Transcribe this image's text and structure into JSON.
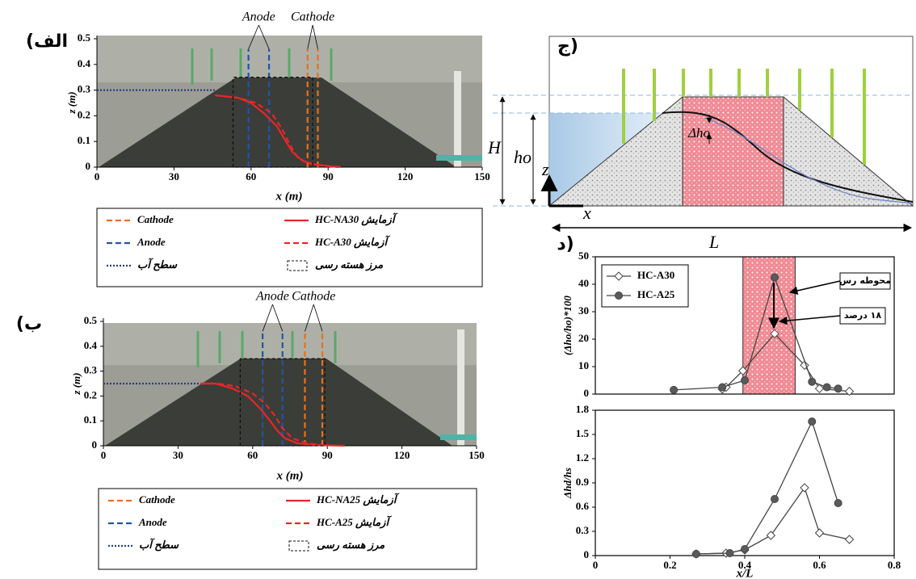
{
  "chart_data": [
    {
      "type": "line",
      "panel_label": "(الف",
      "annotations": [
        "Anode",
        "Cathode"
      ],
      "x_label": "x (m)",
      "y_label": "z (m)",
      "xlim": [
        0,
        150
      ],
      "xticks": [
        0,
        30,
        60,
        90,
        120,
        150
      ],
      "ylim": [
        0,
        0.5
      ],
      "yticks": [
        0,
        0.1,
        0.2,
        0.3,
        0.4,
        0.5
      ],
      "series": [
        {
          "name": "Cathode",
          "color": "#e8701e",
          "style": "dashed",
          "x": [
            82,
            82,
            null,
            86,
            86
          ],
          "values": [
            0,
            0.46,
            null,
            0,
            0.46
          ]
        },
        {
          "name": "Anode",
          "color": "#1f55a8",
          "style": "dashed",
          "x": [
            59,
            59,
            null,
            67,
            67
          ],
          "values": [
            0,
            0.46,
            null,
            0,
            0.46
          ]
        },
        {
          "name": "سطح آب",
          "color": "#2a3a8a",
          "style": "dotted",
          "x": [
            0,
            46
          ],
          "values": [
            0.3,
            0.3
          ]
        },
        {
          "name": "HC-NA30 آزمایش",
          "color": "#e8262a",
          "style": "solid",
          "x": [
            46,
            55,
            60,
            65,
            70,
            73,
            76,
            80,
            85,
            94
          ],
          "values": [
            0.28,
            0.27,
            0.25,
            0.21,
            0.16,
            0.11,
            0.06,
            0.025,
            0.01,
            0
          ]
        },
        {
          "name": "HC-A30 آزمایش",
          "color": "#e8262a",
          "style": "dashed",
          "x": [
            46,
            55,
            62,
            68,
            72,
            75,
            78,
            82,
            88,
            96
          ],
          "values": [
            0.28,
            0.27,
            0.25,
            0.21,
            0.15,
            0.09,
            0.04,
            0.015,
            0.005,
            0
          ]
        },
        {
          "name": "مرز هسته رسی",
          "color": "#111111",
          "style": "box",
          "x": [
            53,
            53,
            84,
            84,
            53
          ],
          "values": [
            0,
            0.35,
            0.35,
            0,
            0
          ]
        }
      ]
    },
    {
      "type": "line",
      "panel_label": "(ب",
      "annotations": [
        "Anode",
        "Cathode"
      ],
      "x_label": "x (m)",
      "y_label": "z (m)",
      "xlim": [
        0,
        150
      ],
      "xticks": [
        0,
        30,
        60,
        90,
        120,
        150
      ],
      "ylim": [
        0,
        0.5
      ],
      "yticks": [
        0,
        0.1,
        0.2,
        0.3,
        0.4,
        0.5
      ],
      "series": [
        {
          "name": "Cathode",
          "color": "#e8701e",
          "style": "dashed",
          "x": [
            81,
            81,
            null,
            88,
            88
          ],
          "values": [
            0,
            0.46,
            null,
            0,
            0.46
          ]
        },
        {
          "name": "Anode",
          "color": "#1f55a8",
          "style": "dashed",
          "x": [
            64,
            64,
            null,
            72,
            72
          ],
          "values": [
            0,
            0.46,
            null,
            0,
            0.46
          ]
        },
        {
          "name": "سطح آب",
          "color": "#2a3a8a",
          "style": "dotted",
          "x": [
            0,
            39
          ],
          "values": [
            0.25,
            0.25
          ]
        },
        {
          "name": "HC-NA25 آزمایش",
          "color": "#e8262a",
          "style": "solid",
          "x": [
            39,
            45,
            52,
            58,
            63,
            67,
            70,
            73,
            78,
            85,
            97
          ],
          "values": [
            0.25,
            0.25,
            0.23,
            0.2,
            0.15,
            0.1,
            0.06,
            0.03,
            0.01,
            0.003,
            0
          ]
        },
        {
          "name": "HC-A25 آزمایش",
          "color": "#e8262a",
          "style": "dashed",
          "x": [
            39,
            46,
            53,
            60,
            65,
            69,
            72,
            76,
            82,
            90
          ],
          "values": [
            0.25,
            0.25,
            0.24,
            0.21,
            0.17,
            0.12,
            0.07,
            0.03,
            0.01,
            0
          ]
        },
        {
          "name": "مرز هسته رسی",
          "color": "#111111",
          "style": "box",
          "x": [
            55,
            55,
            89,
            89,
            55
          ],
          "values": [
            0,
            0.35,
            0.35,
            0,
            0
          ]
        }
      ]
    },
    {
      "type": "line",
      "panel_label": "د)",
      "annotations": [
        "محوطه رس",
        "۱۸ درصد"
      ],
      "y_label": "(Δho/ho)*100",
      "xlim": [
        0,
        0.8
      ],
      "ylim": [
        0,
        50
      ],
      "yticks": [
        0,
        10,
        20,
        30,
        40,
        50
      ],
      "shaded_x": [
        0.395,
        0.535
      ],
      "series": [
        {
          "name": "HC-A30",
          "color": "#444444",
          "style": "solid",
          "marker": "diamond",
          "fill": "#ffffff",
          "x": [
            0.34,
            0.35,
            0.395,
            0.48,
            0.56,
            0.6,
            0.68
          ],
          "values": [
            1.8,
            2.5,
            8.5,
            22,
            10.5,
            2,
            1
          ]
        },
        {
          "name": "HC-A25",
          "color": "#444444",
          "style": "solid",
          "marker": "circle",
          "fill": "#5a5a5a",
          "x": [
            0.21,
            0.34,
            0.4,
            0.48,
            0.58,
            0.62,
            0.65
          ],
          "values": [
            1.5,
            2.5,
            5,
            42.5,
            4.5,
            2.5,
            2
          ]
        }
      ]
    },
    {
      "type": "line",
      "y_label": "Δhd/hs",
      "x_label": "x/L",
      "xlim": [
        0,
        0.8
      ],
      "xticks": [
        0,
        0.2,
        0.4,
        0.6,
        0.8
      ],
      "ylim": [
        0,
        1.8
      ],
      "yticks": [
        0,
        0.3,
        0.6,
        0.9,
        1.2,
        1.5,
        1.8
      ],
      "series": [
        {
          "color": "#444444",
          "style": "solid",
          "marker": "diamond",
          "fill": "#ffffff",
          "x": [
            0.27,
            0.35,
            0.4,
            0.47,
            0.56,
            0.6,
            0.68
          ],
          "values": [
            0.02,
            0.03,
            0.07,
            0.25,
            0.84,
            0.28,
            0.2
          ]
        },
        {
          "color": "#444444",
          "style": "solid",
          "marker": "circle",
          "fill": "#5a5a5a",
          "x": [
            0.27,
            0.36,
            0.4,
            0.48,
            0.58,
            0.65
          ],
          "values": [
            0.02,
            0.03,
            0.08,
            0.7,
            1.66,
            0.65
          ]
        }
      ]
    }
  ],
  "diagram": {
    "panel_label": "ج)",
    "labels": [
      "H",
      "ho",
      "Δho",
      "z",
      "x",
      "L"
    ]
  }
}
